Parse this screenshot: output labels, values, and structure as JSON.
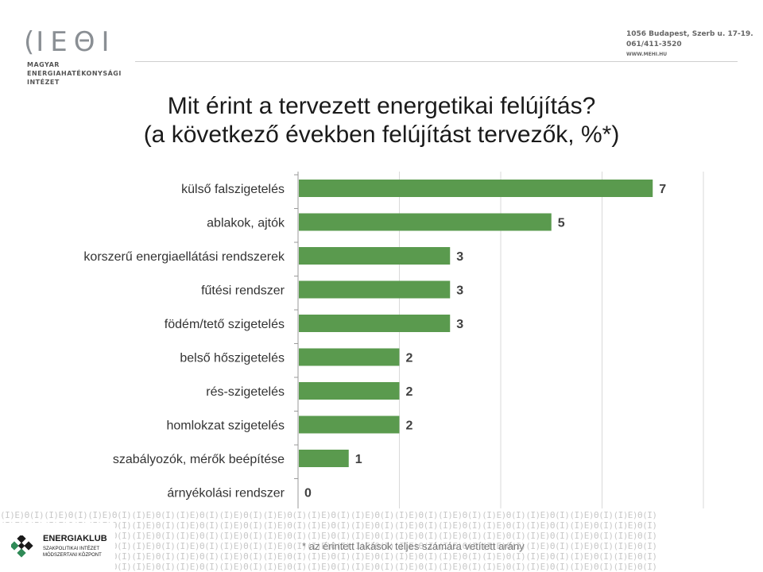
{
  "header": {
    "logo_letters": [
      "(I",
      "E",
      "Θ",
      "I"
    ],
    "org_lines": [
      "MAGYAR",
      "ENERGIAHATÉKONYSÁGI",
      "INTÉZET"
    ],
    "contact": {
      "address": "1056 Budapest, Szerb u. 17-19.",
      "phone": "061/411-3520",
      "web": "WWW.MEHI.HU"
    }
  },
  "title": {
    "line1": "Mit érint a tervezett energetikai felújítás?",
    "line2": "(a következő években felújítást tervezők, %*)"
  },
  "chart_data": {
    "type": "bar",
    "orientation": "horizontal",
    "categories": [
      "külső falszigetelés",
      "ablakok, ajtók",
      "korszerű energiaellátási rendszerek",
      "fűtési rendszer",
      "födém/tető szigetelés",
      "belső hőszigetelés",
      "rés-szigetelés",
      "homlokzat szigetelés",
      "szabályozók, mérők beépítése",
      "árnyékolási rendszer"
    ],
    "values": [
      7,
      5,
      3,
      3,
      3,
      2,
      2,
      2,
      1,
      0
    ],
    "data_labels": [
      "7",
      "5",
      "3",
      "3",
      "3",
      "2",
      "2",
      "2",
      "1",
      "0"
    ],
    "xlim": [
      0,
      8
    ],
    "x_gridlines": [
      0,
      2,
      4,
      6,
      8
    ],
    "bar_color": "#5a9a4e",
    "title": "",
    "xlabel": "",
    "ylabel": ""
  },
  "footer": {
    "energiaklub_title": "ENERGIAKLUB",
    "energiaklub_sub1": "SZAKPOLITIKAI INTÉZET",
    "energiaklub_sub2": "MÓDSZERTANI KÖZPONT",
    "pattern_text": "(I)E)Θ(I)",
    "footnote": "* az érintett lakások teljes számára vetített arány"
  }
}
